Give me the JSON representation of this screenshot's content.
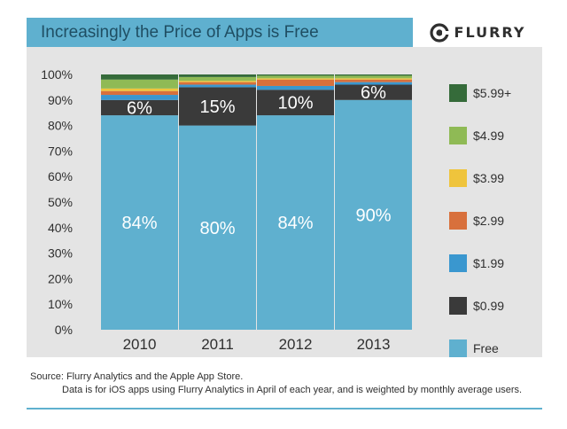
{
  "header": {
    "title": "Increasingly the Price of Apps is Free",
    "logo_text": "FLURRY"
  },
  "footer": {
    "source": "Source: Flurry Analytics and the Apple App Store.",
    "note": "Data is for iOS apps using Flurry Analytics in April of each year, and is weighted by monthly average users."
  },
  "colors": {
    "title_bar": "#5fb0cf",
    "panel": "#e4e4e4",
    "free": "#5fb0cf",
    "p099": "#3a3a3a",
    "p199": "#3a97cf",
    "p299": "#d8703c",
    "p399": "#efc43c",
    "p499": "#8fba55",
    "p599": "#356b3a"
  },
  "chart_data": {
    "type": "bar",
    "stacked": true,
    "categories": [
      "2010",
      "2011",
      "2012",
      "2013"
    ],
    "series": [
      {
        "name": "Free",
        "color": "#5fb0cf",
        "values": [
          84,
          80,
          84,
          90
        ],
        "labels": [
          "84%",
          "80%",
          "84%",
          "90%"
        ]
      },
      {
        "name": "$0.99",
        "color": "#3a3a3a",
        "values": [
          6,
          15,
          10,
          6
        ],
        "labels": [
          "6%",
          "15%",
          "10%",
          "6%"
        ]
      },
      {
        "name": "$1.99",
        "color": "#3a97cf",
        "values": [
          2,
          1,
          1.5,
          1
        ],
        "labels": []
      },
      {
        "name": "$2.99",
        "color": "#d8703c",
        "values": [
          1.5,
          1,
          2.5,
          1
        ],
        "labels": []
      },
      {
        "name": "$3.99",
        "color": "#efc43c",
        "values": [
          1,
          0.5,
          0.5,
          0.5
        ],
        "labels": []
      },
      {
        "name": "$4.99",
        "color": "#8fba55",
        "values": [
          3.5,
          1.5,
          1,
          1
        ],
        "labels": []
      },
      {
        "name": "$5.99+",
        "color": "#356b3a",
        "values": [
          2,
          1,
          0.5,
          0.5
        ],
        "labels": []
      }
    ],
    "ylim": [
      0,
      100
    ],
    "yticks": [
      "0%",
      "10%",
      "20%",
      "30%",
      "40%",
      "50%",
      "60%",
      "70%",
      "80%",
      "90%",
      "100%"
    ],
    "legend_position": "right",
    "legend_order": [
      "$5.99+",
      "$4.99",
      "$3.99",
      "$2.99",
      "$1.99",
      "$0.99",
      "Free"
    ],
    "grid": false
  }
}
